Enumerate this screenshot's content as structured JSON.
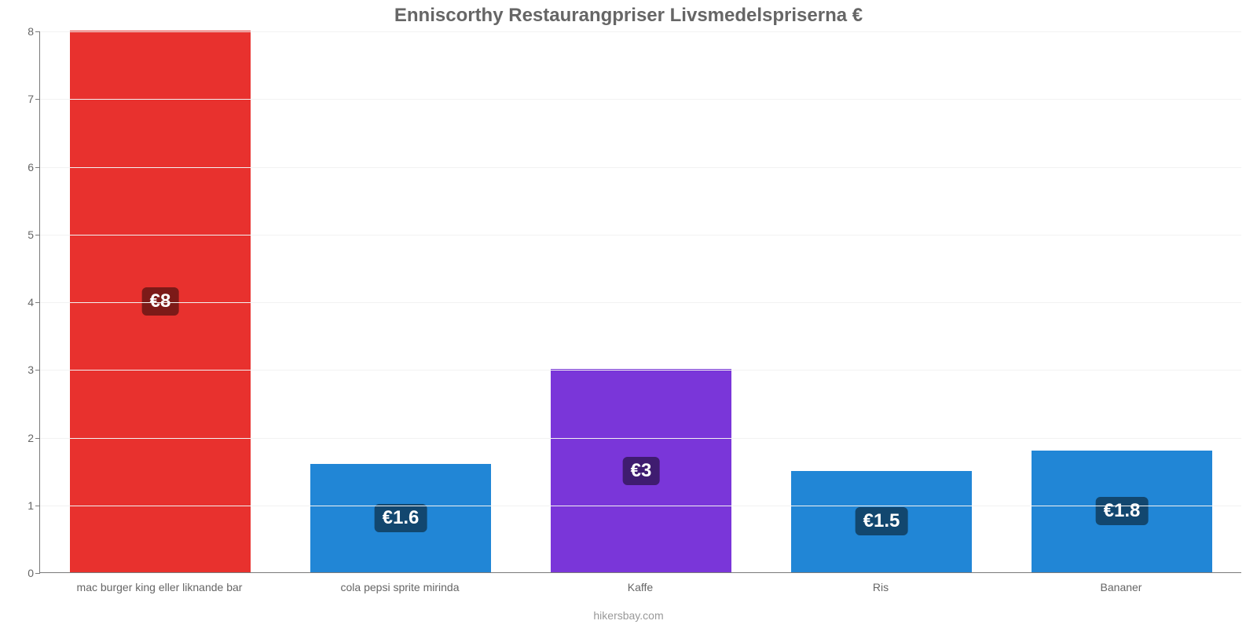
{
  "chart": {
    "type": "bar",
    "title": "Enniscorthy Restaurangpriser Livsmedelspriserna €",
    "title_fontsize": 24,
    "title_color": "#666666",
    "caption": "hikersbay.com",
    "caption_fontsize": 14,
    "caption_color": "#999999",
    "background_color": "#ffffff",
    "plot_background": "#ffffff",
    "grid_color": "#f2f2f2",
    "axis_color": "#7a7a7a",
    "ylim": [
      0,
      8
    ],
    "yticks": [
      0,
      1,
      2,
      3,
      4,
      5,
      6,
      7,
      8
    ],
    "ylabel_fontsize": 14,
    "ylabel_color": "#666666",
    "xlabel_fontsize": 14,
    "xlabel_color": "#666666",
    "bar_width": 0.75,
    "categories": [
      "mac burger king eller liknande bar",
      "cola pepsi sprite mirinda",
      "Kaffe",
      "Ris",
      "Bananer"
    ],
    "values": [
      8,
      1.6,
      3,
      1.5,
      1.8
    ],
    "value_labels": [
      "€8",
      "€1.6",
      "€3",
      "€1.5",
      "€1.8"
    ],
    "value_label_fontsize": 24,
    "bar_colors": [
      "#e8312e",
      "#2186d6",
      "#7a36d9",
      "#2186d6",
      "#2186d6"
    ],
    "badge_colors": [
      "#7c1a18",
      "#12476f",
      "#3f1c70",
      "#12476f",
      "#12476f"
    ]
  }
}
